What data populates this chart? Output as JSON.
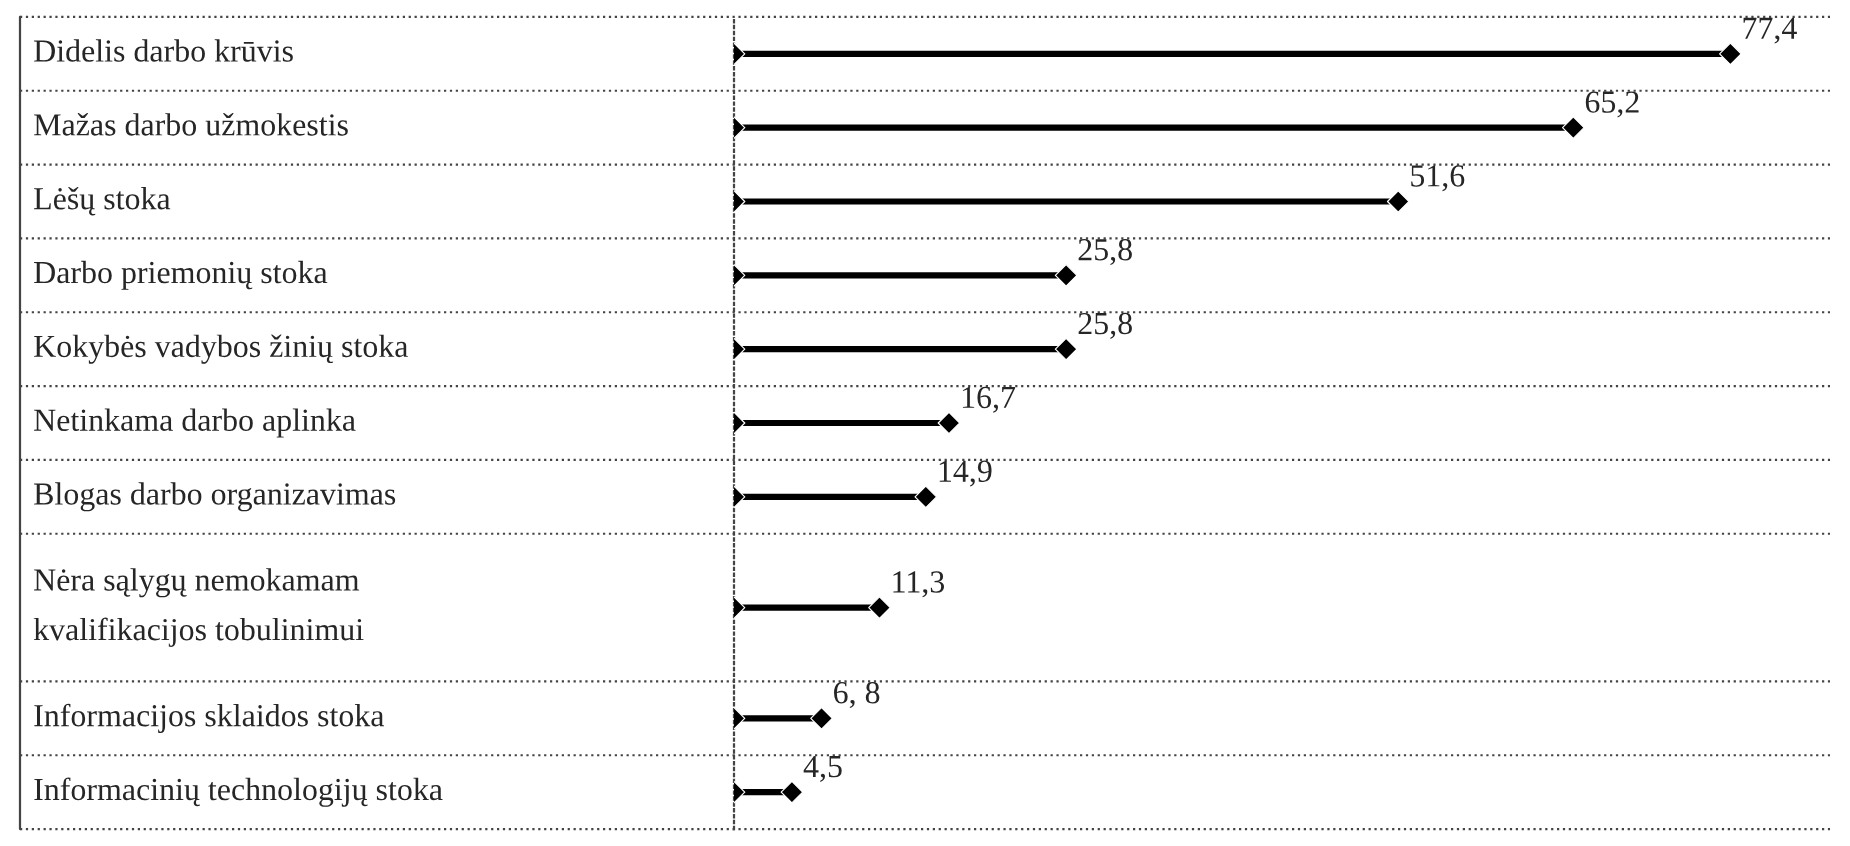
{
  "chart_data": {
    "type": "lollipop",
    "orientation": "horizontal",
    "marker": "diamond",
    "color": "#000000",
    "grid": "y",
    "categories": [
      "Didelis darbo krūvis",
      "Mažas darbo užmokestis",
      "Lėšų stoka",
      "Darbo priemonių stoka",
      "Kokybės vadybos žinių stoka",
      "Netinkama darbo aplinka",
      "Blogas darbo organizavimas",
      "Nėra sąlygų nemokamam\nkvalifikacijos tobulinimui",
      "Informacijos sklaidos stoka",
      "Informacinių technologijų stoka"
    ],
    "values": [
      77.4,
      65.2,
      51.6,
      25.8,
      25.8,
      16.7,
      14.9,
      11.3,
      6.8,
      4.5
    ],
    "value_labels": [
      "77,4",
      "65,2",
      "51,6",
      "25,8",
      "25,8",
      "16,7",
      "14,9",
      "11,3",
      "6, 8",
      "4,5"
    ]
  }
}
